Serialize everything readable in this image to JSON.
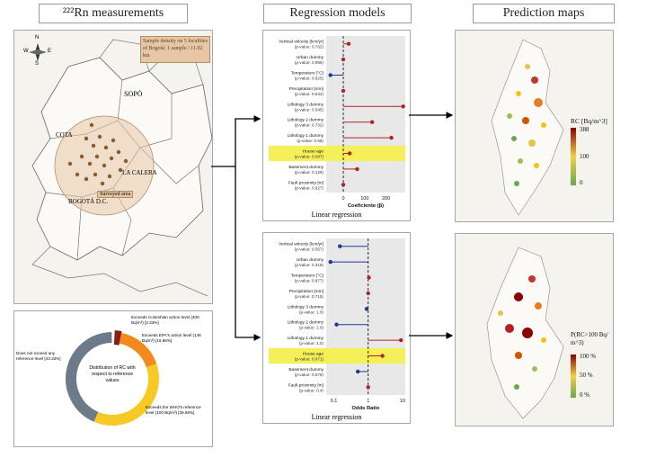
{
  "headers": {
    "measurements": "²²²Rn measurements",
    "regression": "Regression models",
    "prediction": "Prediction maps"
  },
  "map": {
    "note": "Sample density on 5 localities of Bogotá: 1 sample / 11.02 km",
    "places": [
      "SOPÓ",
      "COTA",
      "LA CALERA",
      "BOGOTÁ D.C."
    ],
    "surveyed_area": "Surveyed area",
    "compass": {
      "n": "N",
      "s": "S",
      "e": "E",
      "w": "W"
    }
  },
  "donut": {
    "center_label": "Distribution of RC with respect to reference values",
    "segments": [
      {
        "label": "Exceeds Colombian action level (400 Bq/m³) [2.33%]",
        "percent": 2.33,
        "color": "#8b1a1a"
      },
      {
        "label": "Exceeds EPA's action level (148 Bq/m³) [16.66%]",
        "percent": 16.66,
        "color": "#f28a1e"
      },
      {
        "label": "Exceeds the WHO's reference level (100 Bq/m³) [36.66%]",
        "percent": 36.66,
        "color": "#f7c924"
      },
      {
        "label": "Does not exceed any reference level [43.33%]",
        "percent": 43.33,
        "color": "#6c7a89"
      }
    ]
  },
  "variables": [
    {
      "name": "Vertical velocity [lcm/yr]",
      "p": "(p-value: 0.762)"
    },
    {
      "name": "Urban dummy",
      "p": "(p-value: 0.996)"
    },
    {
      "name": "Temperature [°C]",
      "p": "(p-value: 0.625)"
    },
    {
      "name": "Precipitation [mm]",
      "p": "(p-value: 0.642)"
    },
    {
      "name": "Lithology 3 dummy",
      "p": "(p-value: 0.545)"
    },
    {
      "name": "Lithology 2 dummy",
      "p": "(p-value: 0.732)"
    },
    {
      "name": "Lithology 1 dummy",
      "p": "(p-value: 0.58)"
    },
    {
      "name": "House age",
      "p": "(p-value: 0.087)"
    },
    {
      "name": "Basement dummy",
      "p": "(p-value: 0.129)"
    },
    {
      "name": "Fault proximity [m]",
      "p": "(p-value: 0.927)"
    }
  ],
  "variables2": [
    {
      "name": "Vertical velocity [lcm/yr]",
      "p": "(p-value: 0.557)"
    },
    {
      "name": "Urban dummy",
      "p": "(p-value: 0.318)"
    },
    {
      "name": "Temperature [°C]",
      "p": "(p-value: 0.977)"
    },
    {
      "name": "Precipitation [mm]",
      "p": "(p-value: 0.715)"
    },
    {
      "name": "Lithology 3 dummy",
      "p": "(p-value: 1.0)"
    },
    {
      "name": "Lithology 2 dummy",
      "p": "(p-value: 1.0)"
    },
    {
      "name": "Lithology 1 dummy",
      "p": "(p-value: 1.0)"
    },
    {
      "name": "House age",
      "p": "(p-value: 0.071)"
    },
    {
      "name": "Basement dummy",
      "p": "(p-value: 0.576)"
    },
    {
      "name": "Fault proximity [m]",
      "p": "(p-value: 0.4)"
    }
  ],
  "linear_model": {
    "caption": "Linear regression",
    "xlabel": "Coeficiente (β)",
    "ticks": [
      "0",
      "100",
      "200"
    ],
    "estimates": [
      25,
      0,
      -60,
      0,
      280,
      135,
      225,
      30,
      65,
      0
    ],
    "xlim": [
      -80,
      290
    ]
  },
  "logistic_model": {
    "caption": "Linear regression",
    "xlabel": "Odds Ratio",
    "ticks": [
      "0.1",
      "1",
      "10"
    ],
    "estimates": [
      0.15,
      0.08,
      1.05,
      1.0,
      0.9,
      0.12,
      9.0,
      2.6,
      0.5,
      1.0
    ],
    "xlim": [
      0.06,
      12
    ]
  },
  "legend1": {
    "title": "RC [Bq/m^3]",
    "max": "388",
    "mid": "100",
    "min": "0"
  },
  "legend2": {
    "title": "P(RC>100 Bq/ m^3)",
    "max": "100 %",
    "mid": "50 %",
    "min": "0 %"
  },
  "colors": {
    "dot_pos": "#b22222",
    "dot_neg": "#1f3a93",
    "highlight": "#f5f05a",
    "plot_bg": "#e8e8e8"
  }
}
